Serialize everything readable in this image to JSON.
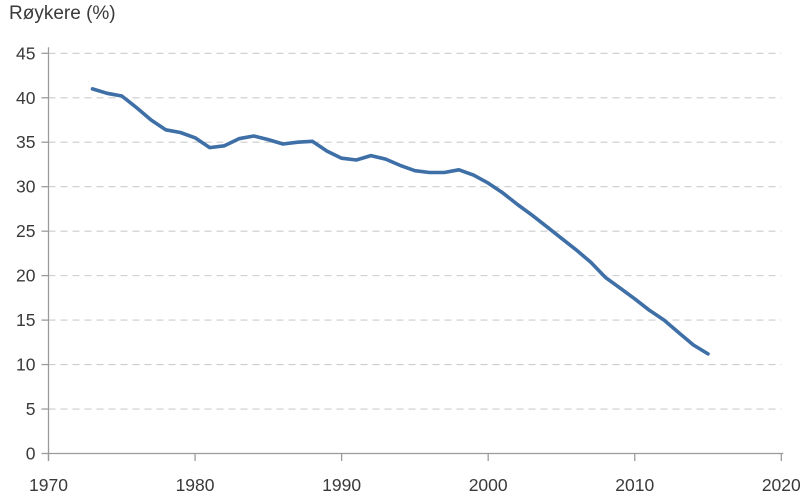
{
  "chart_data": {
    "type": "line",
    "title": "Røykere (%)",
    "legend": "none",
    "grid": "horizontal-dashed",
    "xlim": [
      1970,
      2020
    ],
    "ylim": [
      0,
      45
    ],
    "x_ticks": [
      1970,
      1980,
      1990,
      2000,
      2010,
      2020
    ],
    "y_ticks": [
      0,
      5,
      10,
      15,
      20,
      25,
      30,
      35,
      40,
      45
    ],
    "x": [
      1973,
      1974,
      1975,
      1976,
      1977,
      1978,
      1979,
      1980,
      1981,
      1982,
      1983,
      1984,
      1985,
      1986,
      1987,
      1988,
      1989,
      1990,
      1991,
      1992,
      1993,
      1994,
      1995,
      1996,
      1997,
      1998,
      1999,
      2000,
      2001,
      2002,
      2003,
      2004,
      2005,
      2006,
      2007,
      2008,
      2009,
      2010,
      2011,
      2012,
      2013,
      2014,
      2015
    ],
    "series": [
      {
        "name": "Røykere (%)",
        "values": [
          41.0,
          40.5,
          40.2,
          38.9,
          37.5,
          36.4,
          36.1,
          35.5,
          34.4,
          34.6,
          35.4,
          35.7,
          35.3,
          34.8,
          35.0,
          35.1,
          34.0,
          33.2,
          33.0,
          33.5,
          33.1,
          32.4,
          31.8,
          31.6,
          31.6,
          31.9,
          31.3,
          30.4,
          29.3,
          28.0,
          26.8,
          25.5,
          24.2,
          22.9,
          21.5,
          19.8,
          18.6,
          17.4,
          16.1,
          15.0,
          13.6,
          12.2,
          11.2
        ]
      }
    ],
    "colors": {
      "line": "#3e6fa6",
      "grid": "#cccccc",
      "axis": "#9b9b9b",
      "text": "#3a3a3a",
      "background": "#ffffff"
    }
  }
}
